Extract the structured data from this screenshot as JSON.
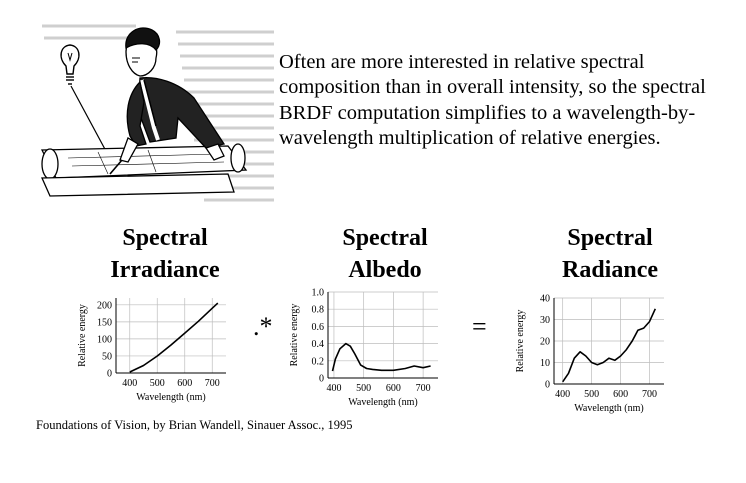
{
  "intro_text": "Often are more interested in relative spectral composition than in overall intensity, so the spectral BRDF computation simplifies to a wavelength-by-wavelength multiplication of relative energies.",
  "titles": {
    "irradiance": [
      "Spectral",
      "Irradiance"
    ],
    "albedo": [
      "Spectral",
      "Albedo"
    ],
    "radiance": [
      "Spectral",
      "Radiance"
    ]
  },
  "operators": {
    "multiply": ".*",
    "equals": "="
  },
  "caption": "Foundations of Vision, by Brian Wandell, Sinauer Assoc., 1995",
  "chart_data": [
    {
      "type": "line",
      "title": "Spectral Irradiance",
      "xlabel": "Wavelength (nm)",
      "ylabel": "Relative energy",
      "xlim": [
        350,
        750
      ],
      "ylim": [
        0,
        220
      ],
      "xticks": [
        400,
        500,
        600,
        700
      ],
      "yticks": [
        0,
        50,
        100,
        150,
        200
      ],
      "grid": true,
      "x": [
        400,
        450,
        500,
        550,
        600,
        650,
        700,
        720
      ],
      "y": [
        3,
        22,
        50,
        82,
        117,
        152,
        190,
        205
      ]
    },
    {
      "type": "line",
      "title": "Spectral Albedo",
      "xlabel": "Wavelength (nm)",
      "ylabel": "Relative energy",
      "xlim": [
        380,
        750
      ],
      "ylim": [
        0,
        1.0
      ],
      "xticks": [
        400,
        500,
        600,
        700
      ],
      "yticks": [
        0,
        0.2,
        0.4,
        0.6,
        0.8,
        1.0
      ],
      "ytick_labels": [
        "0",
        "0.2",
        "0.4",
        "0.6",
        "0.8",
        "1.0"
      ],
      "grid": true,
      "x": [
        395,
        405,
        420,
        440,
        455,
        470,
        490,
        510,
        530,
        560,
        600,
        640,
        670,
        700,
        725
      ],
      "y": [
        0.08,
        0.22,
        0.34,
        0.4,
        0.37,
        0.28,
        0.15,
        0.11,
        0.1,
        0.09,
        0.09,
        0.11,
        0.14,
        0.12,
        0.14
      ]
    },
    {
      "type": "line",
      "title": "Spectral Radiance",
      "xlabel": "Wavelength (nm)",
      "ylabel": "Relative energy",
      "xlim": [
        370,
        750
      ],
      "ylim": [
        0,
        40
      ],
      "xticks": [
        400,
        500,
        600,
        700
      ],
      "yticks": [
        0,
        10,
        20,
        30,
        40
      ],
      "grid": true,
      "x": [
        400,
        420,
        440,
        460,
        480,
        500,
        520,
        540,
        560,
        580,
        600,
        620,
        640,
        660,
        680,
        700,
        720
      ],
      "y": [
        1,
        5,
        12,
        15,
        13,
        10,
        9,
        10,
        12,
        11,
        13,
        16,
        20,
        25,
        26,
        29,
        35
      ]
    }
  ]
}
